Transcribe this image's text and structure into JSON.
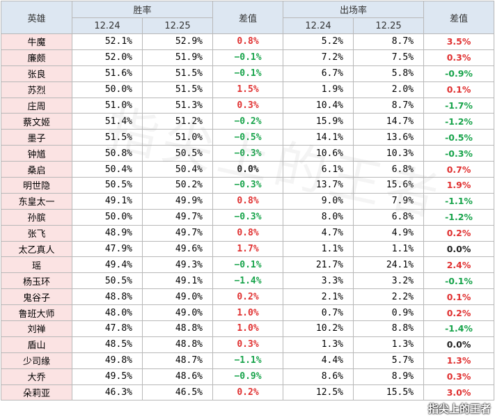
{
  "headers": {
    "hero": "英雄",
    "winrate": "胜率",
    "diff1": "差值",
    "pickrate": "出场率",
    "diff2": "差值",
    "date1": "12.24",
    "date2": "12.25",
    "date3": "12.24",
    "date4": "12.25"
  },
  "rows": [
    {
      "hero": "牛魔",
      "w1": "52.1%",
      "w2": "52.9%",
      "d1": "0.8%",
      "p1": "5.2%",
      "p2": "8.7%",
      "d2": "3.5%",
      "s1": "pos",
      "s2": "pos"
    },
    {
      "hero": "廉颇",
      "w1": "52.0%",
      "w2": "51.9%",
      "d1": "−0.1%",
      "p1": "7.2%",
      "p2": "7.5%",
      "d2": "0.3%",
      "s1": "neg",
      "s2": "pos"
    },
    {
      "hero": "张良",
      "w1": "51.6%",
      "w2": "51.5%",
      "d1": "−0.1%",
      "p1": "6.7%",
      "p2": "5.8%",
      "d2": "-0.9%",
      "s1": "neg",
      "s2": "neg"
    },
    {
      "hero": "苏烈",
      "w1": "50.0%",
      "w2": "51.5%",
      "d1": "1.5%",
      "p1": "1.9%",
      "p2": "2.0%",
      "d2": "0.1%",
      "s1": "pos",
      "s2": "pos"
    },
    {
      "hero": "庄周",
      "w1": "51.0%",
      "w2": "51.3%",
      "d1": "0.3%",
      "p1": "10.4%",
      "p2": "8.7%",
      "d2": "-1.7%",
      "s1": "pos",
      "s2": "neg"
    },
    {
      "hero": "蔡文姬",
      "w1": "51.4%",
      "w2": "51.2%",
      "d1": "−0.2%",
      "p1": "15.9%",
      "p2": "14.7%",
      "d2": "-1.2%",
      "s1": "neg",
      "s2": "neg"
    },
    {
      "hero": "墨子",
      "w1": "51.5%",
      "w2": "51.0%",
      "d1": "−0.5%",
      "p1": "14.1%",
      "p2": "13.6%",
      "d2": "-0.5%",
      "s1": "neg",
      "s2": "neg"
    },
    {
      "hero": "钟馗",
      "w1": "50.8%",
      "w2": "50.5%",
      "d1": "−0.3%",
      "p1": "10.6%",
      "p2": "10.3%",
      "d2": "-0.3%",
      "s1": "neg",
      "s2": "neg"
    },
    {
      "hero": "桑启",
      "w1": "50.4%",
      "w2": "50.4%",
      "d1": "0.0%",
      "p1": "6.1%",
      "p2": "6.8%",
      "d2": "0.7%",
      "s1": "zero",
      "s2": "pos"
    },
    {
      "hero": "明世隐",
      "w1": "50.5%",
      "w2": "50.2%",
      "d1": "−0.3%",
      "p1": "13.7%",
      "p2": "15.6%",
      "d2": "1.9%",
      "s1": "neg",
      "s2": "pos"
    },
    {
      "hero": "东皇太一",
      "w1": "49.1%",
      "w2": "49.9%",
      "d1": "0.8%",
      "p1": "9.0%",
      "p2": "7.9%",
      "d2": "-1.1%",
      "s1": "pos",
      "s2": "neg"
    },
    {
      "hero": "孙膑",
      "w1": "50.0%",
      "w2": "49.7%",
      "d1": "−0.3%",
      "p1": "8.0%",
      "p2": "6.8%",
      "d2": "-1.2%",
      "s1": "neg",
      "s2": "neg"
    },
    {
      "hero": "张飞",
      "w1": "48.9%",
      "w2": "49.7%",
      "d1": "0.8%",
      "p1": "4.7%",
      "p2": "4.9%",
      "d2": "0.2%",
      "s1": "pos",
      "s2": "pos"
    },
    {
      "hero": "太乙真人",
      "w1": "47.9%",
      "w2": "49.6%",
      "d1": "1.7%",
      "p1": "1.1%",
      "p2": "1.1%",
      "d2": "0.0%",
      "s1": "pos",
      "s2": "zero"
    },
    {
      "hero": "瑶",
      "w1": "49.4%",
      "w2": "49.3%",
      "d1": "−0.1%",
      "p1": "21.7%",
      "p2": "24.1%",
      "d2": "2.4%",
      "s1": "neg",
      "s2": "pos"
    },
    {
      "hero": "杨玉环",
      "w1": "50.5%",
      "w2": "49.1%",
      "d1": "−1.4%",
      "p1": "3.3%",
      "p2": "3.2%",
      "d2": "-0.1%",
      "s1": "neg",
      "s2": "neg"
    },
    {
      "hero": "鬼谷子",
      "w1": "48.8%",
      "w2": "49.0%",
      "d1": "0.2%",
      "p1": "2.1%",
      "p2": "2.2%",
      "d2": "0.1%",
      "s1": "pos",
      "s2": "pos"
    },
    {
      "hero": "鲁班大师",
      "w1": "48.0%",
      "w2": "49.0%",
      "d1": "1.0%",
      "p1": "0.7%",
      "p2": "0.9%",
      "d2": "0.2%",
      "s1": "pos",
      "s2": "pos"
    },
    {
      "hero": "刘禅",
      "w1": "47.8%",
      "w2": "48.8%",
      "d1": "1.0%",
      "p1": "10.2%",
      "p2": "8.8%",
      "d2": "-1.4%",
      "s1": "pos",
      "s2": "neg"
    },
    {
      "hero": "盾山",
      "w1": "48.5%",
      "w2": "48.8%",
      "d1": "0.3%",
      "p1": "1.3%",
      "p2": "1.3%",
      "d2": "0.0%",
      "s1": "pos",
      "s2": "zero"
    },
    {
      "hero": "少司缘",
      "w1": "49.8%",
      "w2": "48.7%",
      "d1": "−1.1%",
      "p1": "4.4%",
      "p2": "5.7%",
      "d2": "1.3%",
      "s1": "neg",
      "s2": "pos"
    },
    {
      "hero": "大乔",
      "w1": "49.5%",
      "w2": "48.6%",
      "d1": "−0.9%",
      "p1": "8.6%",
      "p2": "8.9%",
      "d2": "0.3%",
      "s1": "neg",
      "s2": "pos"
    },
    {
      "hero": "朵莉亚",
      "w1": "46.3%",
      "w2": "46.5%",
      "d1": "0.2%",
      "p1": "12.5%",
      "p2": "15.5%",
      "d2": "3.0%",
      "s1": "pos",
      "s2": "pos"
    }
  ],
  "watermark": "指尖上的王者",
  "corner_logo": "指尖上的王者"
}
